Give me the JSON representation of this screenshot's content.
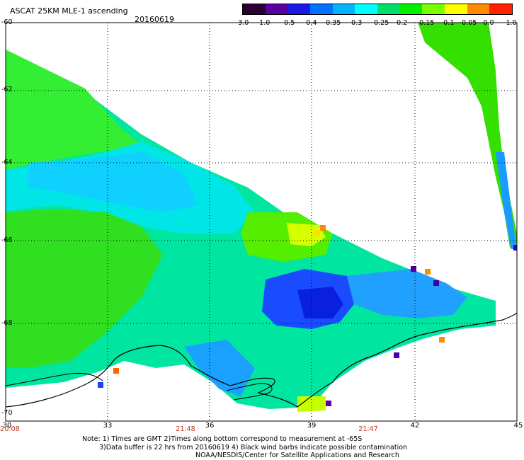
{
  "header": {
    "title": "ASCAT 25KM MLE-1 ascending",
    "date": "20160619"
  },
  "colorbar": {
    "labels": [
      "-3.0",
      "-1.0",
      "-0.5",
      "-0.4",
      "-0.35",
      "-0.3",
      "-0.25",
      "-0.2",
      "-0.15",
      "-0.1",
      "-0.05",
      "0.0",
      "1.0"
    ],
    "colors": [
      "#2a0033",
      "#5a00a0",
      "#1a1ae8",
      "#0070ff",
      "#00b4ff",
      "#00ffff",
      "#00e066",
      "#00f000",
      "#7aff00",
      "#ffff00",
      "#ff8c00",
      "#ff2000"
    ]
  },
  "map": {
    "lon_ticks": [
      "30",
      "33",
      "36",
      "39",
      "42",
      "45"
    ],
    "lat_ticks": [
      "-60",
      "-62",
      "-64",
      "-66",
      "-68",
      "-70"
    ],
    "time_labels": [
      "20:08",
      "21:48",
      "21:47"
    ],
    "lon_range": [
      30,
      45
    ],
    "lat_range": [
      -70,
      -60
    ]
  },
  "note": {
    "line1": "Note: 1) Times are GMT 2)Times along bottom correspond to measurement at -65S",
    "line2": "3)Data buffer is 22 hrs from 20160619 4) Black wind barbs indicate possible contamination",
    "line3": "NOAA/NESDIS/Center for Satellite Applications and Research"
  }
}
